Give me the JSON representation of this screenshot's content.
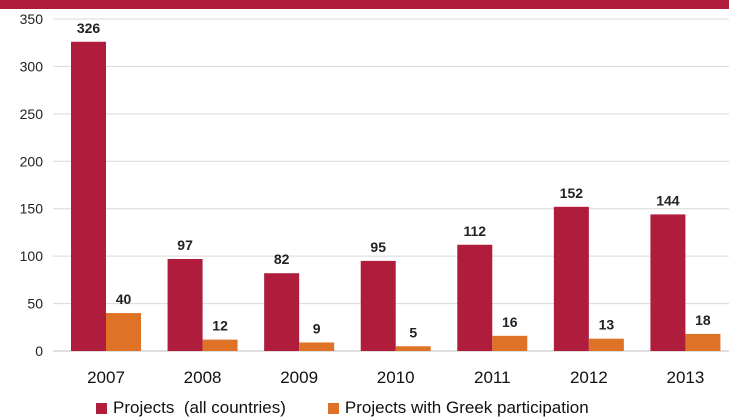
{
  "chart_data": {
    "type": "bar",
    "categories": [
      "2007",
      "2008",
      "2009",
      "2010",
      "2011",
      "2012",
      "2013"
    ],
    "series": [
      {
        "name": "Projects  (all countries)",
        "values": [
          326,
          97,
          82,
          95,
          112,
          152,
          144
        ],
        "color": "#b01c3c"
      },
      {
        "name": "Projects with Greek participation",
        "values": [
          40,
          12,
          9,
          5,
          16,
          13,
          18
        ],
        "color": "#de7226"
      }
    ],
    "yticks": [
      0,
      50,
      100,
      150,
      200,
      250,
      300,
      350
    ],
    "ylim": [
      0,
      350
    ],
    "grid": true,
    "legend_position": "bottom"
  }
}
